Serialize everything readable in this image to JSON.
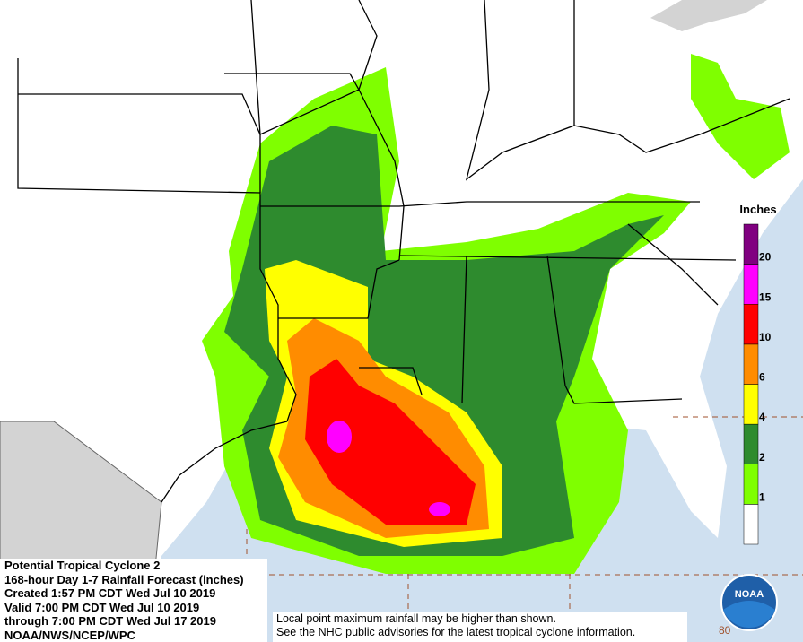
{
  "caption": {
    "lines": [
      "Potential Tropical Cyclone 2",
      "168-hour Day 1-7 Rainfall Forecast (inches)",
      "Created 1:57 PM CDT Wed Jul 10 2019",
      "Valid 7:00 PM CDT Wed Jul 10 2019",
      "through 7:00 PM CDT Wed Jul 17 2019",
      "NOAA/NWS/NCEP/WPC"
    ]
  },
  "legend": {
    "title": "Inches",
    "colors": [
      "#ffffff",
      "#7fff00",
      "#2e8b2e",
      "#ffff00",
      "#ff8c00",
      "#ff0000",
      "#ff00ff",
      "#800080"
    ],
    "labels": [
      1,
      2,
      4,
      6,
      10,
      15,
      20
    ]
  },
  "note": {
    "lines": [
      "Local point maximum rainfall may be higher than shown.",
      "See the NHC public advisories for the latest tropical cyclone information."
    ]
  },
  "map": {
    "grid_label": "80"
  },
  "logo": {
    "text": "NOAA"
  }
}
